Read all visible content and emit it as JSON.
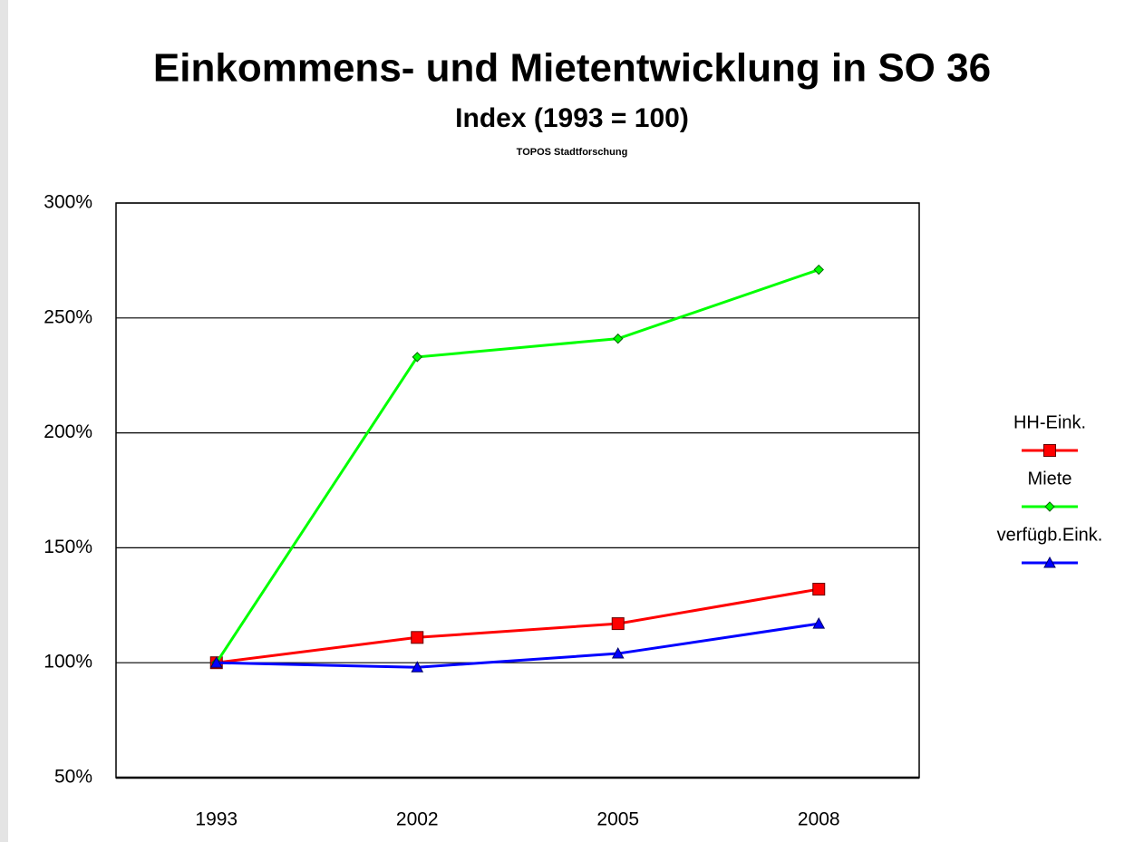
{
  "chart_data": {
    "type": "line",
    "title": "Einkommens- und Mietentwicklung in SO 36",
    "subtitle": "Index (1993 = 100)",
    "source": "TOPOS Stadtforschung",
    "categories": [
      "1993",
      "2002",
      "2005",
      "2008"
    ],
    "series": [
      {
        "name": "HH-Eink.",
        "color": "#ff0000",
        "marker": "square",
        "values": [
          100,
          111,
          117,
          132
        ]
      },
      {
        "name": "Miete",
        "color": "#00ff00",
        "marker": "diamond",
        "values": [
          100,
          233,
          241,
          271
        ]
      },
      {
        "name": "verfügb.Eink.",
        "color": "#0000ff",
        "marker": "triangle",
        "values": [
          100,
          98,
          104,
          117
        ]
      }
    ],
    "ylim": [
      50,
      300
    ],
    "yticks": [
      {
        "value": 50,
        "label": "50%"
      },
      {
        "value": 100,
        "label": "100%"
      },
      {
        "value": 150,
        "label": "150%"
      },
      {
        "value": 200,
        "label": "200%"
      },
      {
        "value": 250,
        "label": "250%"
      },
      {
        "value": 300,
        "label": "300%"
      }
    ],
    "grid": true
  }
}
